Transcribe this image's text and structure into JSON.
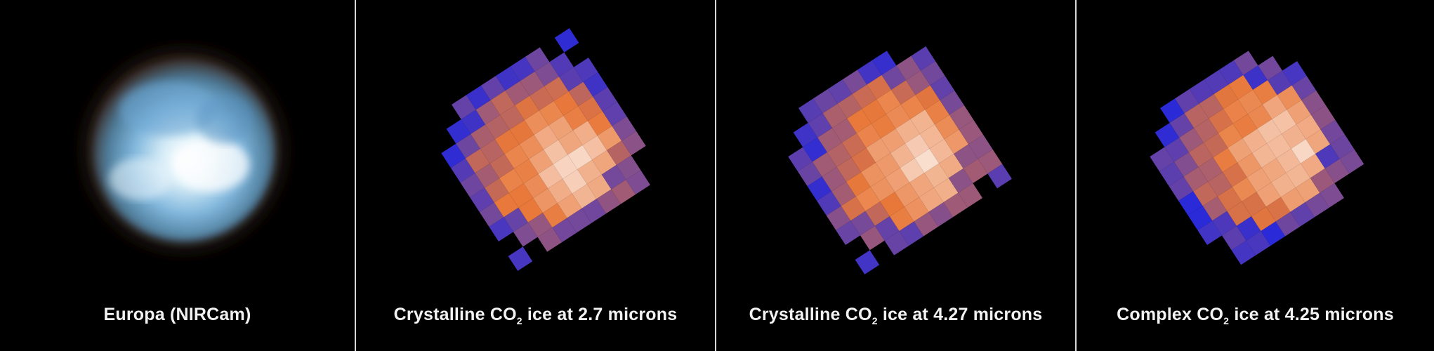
{
  "panels": [
    {
      "label": "Europa (NIRCam)",
      "kind": "photo"
    },
    {
      "label_pre": "Crystalline CO",
      "label_sub": "2",
      "label_post": " ice at 2.7 microns",
      "kind": "map"
    },
    {
      "label_pre": "Crystalline CO",
      "label_sub": "2",
      "label_post": " ice at 4.27 microns",
      "kind": "map"
    },
    {
      "label_pre": "Complex CO",
      "label_sub": "2",
      "label_post": " ice at 4.25 microns",
      "kind": "map"
    }
  ],
  "colors": {
    "background": "#000000",
    "divider": "#d8d8d8",
    "text": "#f2f2f2",
    "low": "#2a2ad8",
    "mid": "#e8783a",
    "high": "#ffffff"
  }
}
